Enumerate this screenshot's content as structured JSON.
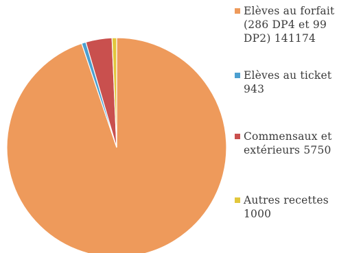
{
  "chart_data": {
    "type": "pie",
    "title": "",
    "slices": [
      {
        "label": "Elèves au forfait (286 DP4 et 99 DP2) 141174",
        "value": 141174,
        "color": "#ee9a5b"
      },
      {
        "label": "Elèves au ticket 943",
        "value": 943,
        "color": "#4c9fd0"
      },
      {
        "label": "Commensaux et extérieurs 5750",
        "value": 5750,
        "color": "#c9504e"
      },
      {
        "label": "Autres recettes 1000",
        "value": 1000,
        "color": "#e2c73c"
      }
    ],
    "legend_position": "right"
  }
}
